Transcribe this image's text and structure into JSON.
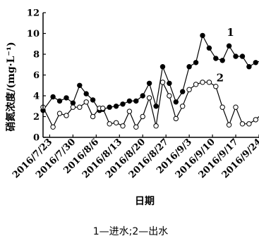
{
  "chart_data": {
    "type": "line",
    "xlabel": "日期",
    "ylabel": "硝氮浓度/(mg·L⁻¹)",
    "ylim": [
      0,
      12
    ],
    "yticks": [
      0,
      2,
      4,
      6,
      8,
      10,
      12
    ],
    "xtick_labels": [
      "2016/7/23",
      "2016/7/30",
      "2016/8/6",
      "2016/8/13",
      "2016/8/20",
      "2016/8/27",
      "2016/9/3",
      "2016/9/10",
      "2016/9/17",
      "2016/9/24"
    ],
    "xlim": [
      "2016/7/21",
      "2016/9/24"
    ],
    "grid": false,
    "caption": "1—进水;2—出水",
    "series": [
      {
        "name": "1",
        "marker": "filled-circle",
        "x": [
          "2016/7/21",
          "2016/7/24",
          "2016/7/26",
          "2016/7/28",
          "2016/7/30",
          "2016/8/1",
          "2016/8/3",
          "2016/8/5",
          "2016/8/7",
          "2016/8/8",
          "2016/8/10",
          "2016/8/12",
          "2016/8/14",
          "2016/8/16",
          "2016/8/18",
          "2016/8/20",
          "2016/8/22",
          "2016/8/24",
          "2016/8/26",
          "2016/8/28",
          "2016/8/30",
          "2016/9/1",
          "2016/9/3",
          "2016/9/5",
          "2016/9/7",
          "2016/9/9",
          "2016/9/11",
          "2016/9/13",
          "2016/9/15",
          "2016/9/17",
          "2016/9/19",
          "2016/9/21",
          "2016/9/23",
          "2016/9/24"
        ],
        "values": [
          2.6,
          3.9,
          3.5,
          3.8,
          3.3,
          5.0,
          4.2,
          3.6,
          2.6,
          2.7,
          2.9,
          3.0,
          3.2,
          3.5,
          3.5,
          4.0,
          5.2,
          3.0,
          6.8,
          5.2,
          3.4,
          4.4,
          6.8,
          7.2,
          9.8,
          8.6,
          7.6,
          7.4,
          8.8,
          7.8,
          7.8,
          6.8,
          7.2,
          7.3
        ]
      },
      {
        "name": "2",
        "marker": "open-circle",
        "x": [
          "2016/7/21",
          "2016/7/24",
          "2016/7/26",
          "2016/7/28",
          "2016/7/30",
          "2016/8/1",
          "2016/8/3",
          "2016/8/5",
          "2016/8/7",
          "2016/8/8",
          "2016/8/10",
          "2016/8/12",
          "2016/8/14",
          "2016/8/16",
          "2016/8/18",
          "2016/8/20",
          "2016/8/22",
          "2016/8/24",
          "2016/8/26",
          "2016/8/28",
          "2016/8/30",
          "2016/9/1",
          "2016/9/3",
          "2016/9/5",
          "2016/9/7",
          "2016/9/9",
          "2016/9/11",
          "2016/9/13",
          "2016/9/15",
          "2016/9/17",
          "2016/9/19",
          "2016/9/21",
          "2016/9/23",
          "2016/9/24"
        ],
        "values": [
          2.9,
          1.0,
          2.3,
          2.1,
          2.9,
          2.9,
          3.4,
          2.0,
          2.8,
          2.8,
          1.3,
          1.4,
          1.1,
          2.5,
          1.0,
          2.0,
          3.8,
          1.1,
          5.3,
          4.0,
          1.8,
          3.0,
          4.6,
          5.1,
          5.3,
          5.3,
          4.9,
          2.9,
          1.2,
          2.9,
          1.3,
          1.3,
          1.7,
          2.0
        ]
      }
    ]
  }
}
